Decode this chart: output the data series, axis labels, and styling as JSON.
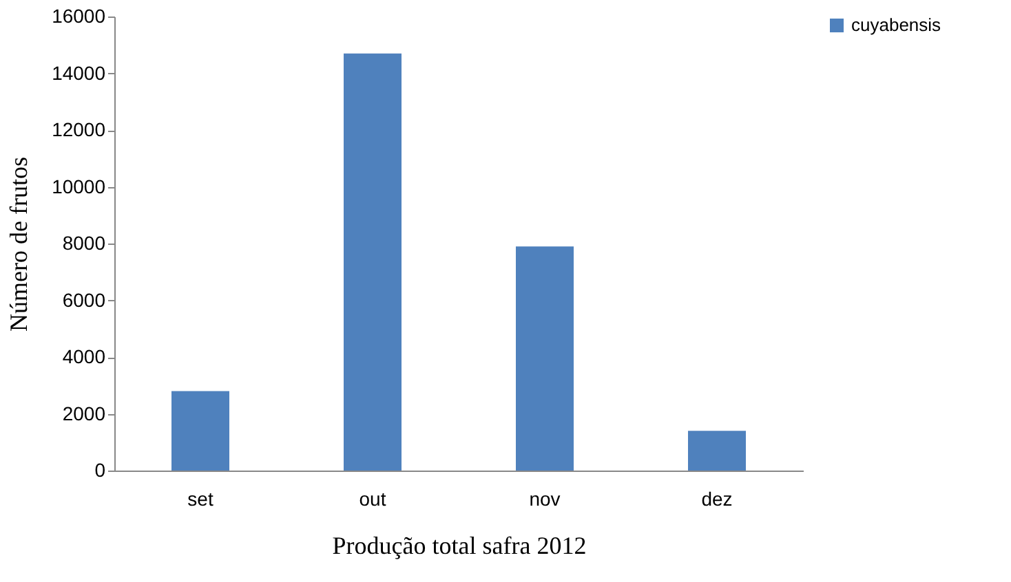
{
  "chart_data": {
    "type": "bar",
    "xlabel": "Produção total safra 2012",
    "ylabel": "Número de frutos",
    "categories": [
      "set",
      "out",
      "nov",
      "dez"
    ],
    "series": [
      {
        "name": "cuyabensis",
        "color": "#4f81bd",
        "values": [
          2800,
          14700,
          7900,
          1400
        ]
      }
    ],
    "ylim": [
      0,
      16000
    ],
    "yticks": [
      0,
      2000,
      4000,
      6000,
      8000,
      10000,
      12000,
      14000,
      16000
    ],
    "legend": "right"
  }
}
